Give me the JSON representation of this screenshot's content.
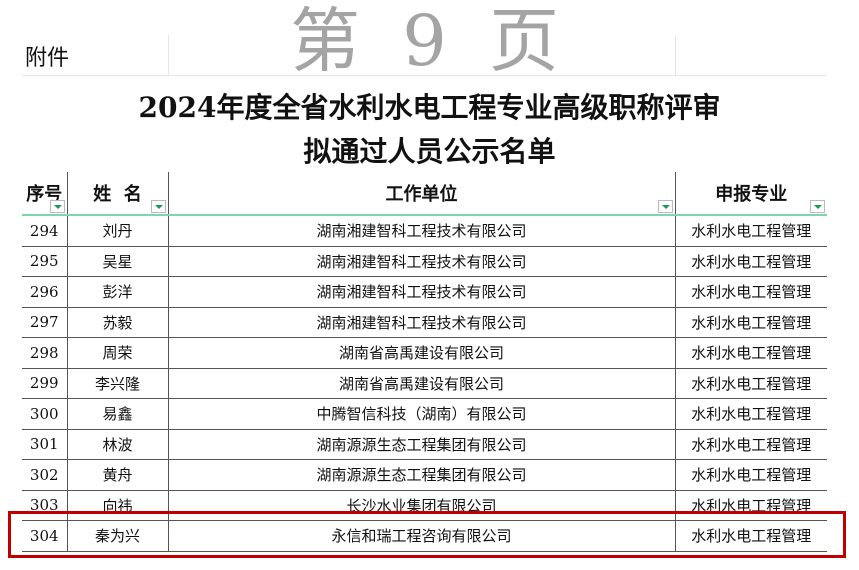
{
  "attachment_label": "附件",
  "title_line1": "2024年度全省水利水电工程专业高级职称评审",
  "title_line2": "拟通过人员公示名单",
  "columns": [
    "序号",
    "姓  名",
    "工作单位",
    "申报专业"
  ],
  "rows": [
    [
      "294",
      "刘丹",
      "湖南湘建智科工程技术有限公司",
      "水利水电工程管理"
    ],
    [
      "295",
      "吴星",
      "湖南湘建智科工程技术有限公司",
      "水利水电工程管理"
    ],
    [
      "296",
      "彭洋",
      "湖南湘建智科工程技术有限公司",
      "水利水电工程管理"
    ],
    [
      "297",
      "苏毅",
      "湖南湘建智科工程技术有限公司",
      "水利水电工程管理"
    ],
    [
      "298",
      "周荣",
      "湖南省高禹建设有限公司",
      "水利水电工程管理"
    ],
    [
      "299",
      "李兴隆",
      "湖南省高禹建设有限公司",
      "水利水电工程管理"
    ],
    [
      "300",
      "易鑫",
      "中腾智信科技（湖南）有限公司",
      "水利水电工程管理"
    ],
    [
      "301",
      "林波",
      "湖南源源生态工程集团有限公司",
      "水利水电工程管理"
    ],
    [
      "302",
      "黄舟",
      "湖南源源生态工程集团有限公司",
      "水利水电工程管理"
    ],
    [
      "303",
      "向祎",
      "长沙水业集团有限公司",
      "水利水电工程管理"
    ],
    [
      "304",
      "秦为兴",
      "永信和瑞工程咨询有限公司",
      "水利水电工程管理"
    ]
  ],
  "watermark": "第 9 页",
  "highlight_color": "#c00000"
}
